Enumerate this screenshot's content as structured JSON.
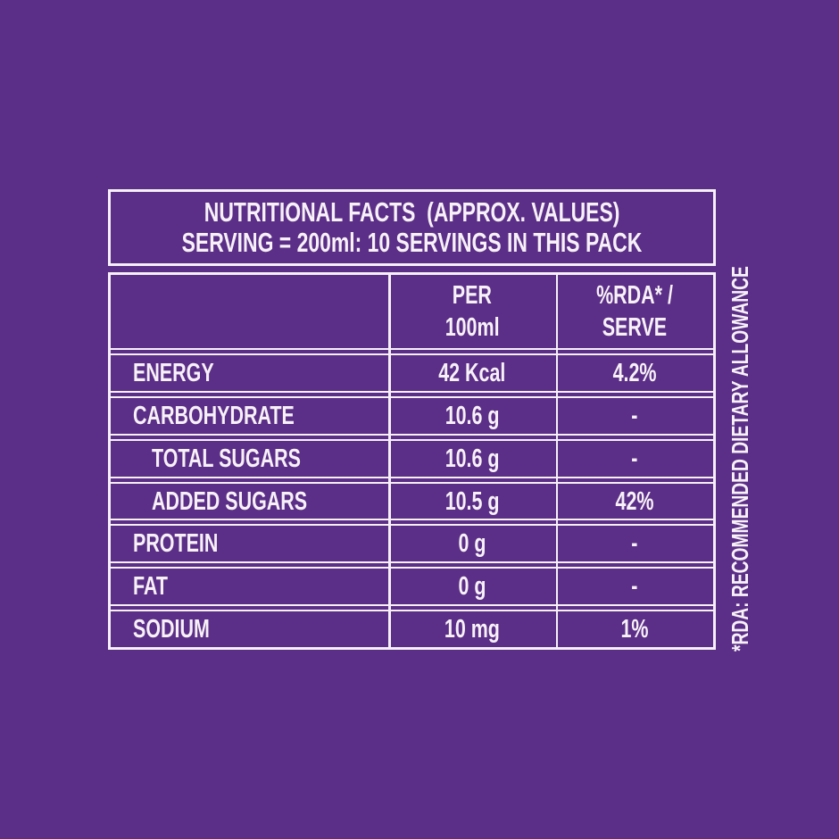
{
  "page": {
    "background_color": "#5B2E87",
    "foreground_color": "#F7F1F7"
  },
  "label": {
    "title_line1": "NUTRITIONAL FACTS  (APPROX. VALUES)",
    "title_line2": "SERVING = 200ml: 10 SERVINGS IN THIS PACK",
    "columns": {
      "col1": "",
      "col2_line1": "PER",
      "col2_line2": "100ml",
      "col3_line1": "%RDA* /",
      "col3_line2": "SERVE"
    },
    "rows": [
      {
        "label": "ENERGY",
        "per_100ml": "42 Kcal",
        "rda_per_serve": "4.2%",
        "indent": false
      },
      {
        "label": "CARBOHYDRATE",
        "per_100ml": "10.6 g",
        "rda_per_serve": "-",
        "indent": false
      },
      {
        "label": "TOTAL SUGARS",
        "per_100ml": "10.6 g",
        "rda_per_serve": "-",
        "indent": true
      },
      {
        "label": "ADDED SUGARS",
        "per_100ml": "10.5 g",
        "rda_per_serve": "42%",
        "indent": true
      },
      {
        "label": "PROTEIN",
        "per_100ml": "0 g",
        "rda_per_serve": "-",
        "indent": false
      },
      {
        "label": "FAT",
        "per_100ml": "0 g",
        "rda_per_serve": "-",
        "indent": false
      },
      {
        "label": "SODIUM",
        "per_100ml": "10 mg",
        "rda_per_serve": "1%",
        "indent": false
      }
    ],
    "footnote_vertical": "*RDA: RECOMMENDED DIETARY ALLOWANCE"
  }
}
